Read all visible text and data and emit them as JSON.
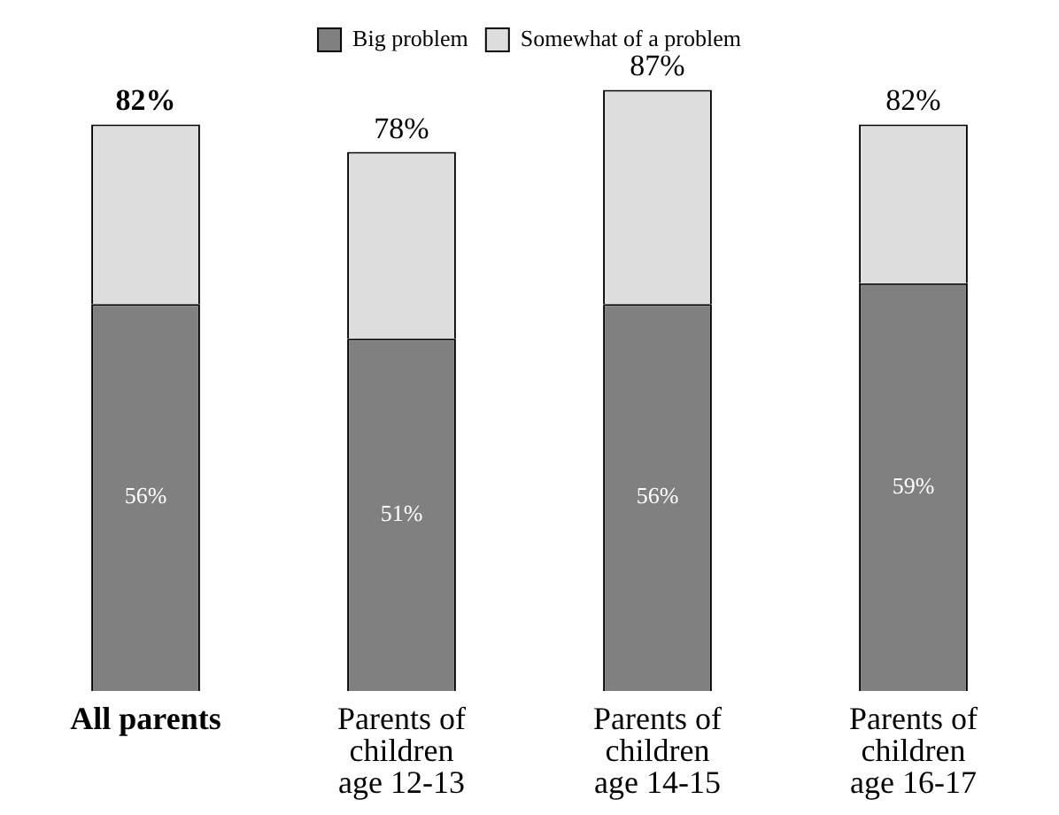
{
  "chart_data": {
    "type": "bar",
    "stacked": true,
    "categories": [
      "All parents",
      "Parents of children age 12-13",
      "Parents of children age 14-15",
      "Parents of children age 16-17"
    ],
    "series": [
      {
        "name": "Big problem",
        "color": "#808080",
        "values": [
          56,
          51,
          56,
          59
        ],
        "value_labels": [
          "56%",
          "51%",
          "56%",
          "59%"
        ]
      },
      {
        "name": "Somewhat of a problem",
        "color": "#dddddd",
        "values": [
          26,
          27,
          31,
          23
        ]
      }
    ],
    "totals": [
      "82%",
      "78%",
      "87%",
      "82%"
    ],
    "tick_labels": "x",
    "legend": "top",
    "grid": false
  }
}
